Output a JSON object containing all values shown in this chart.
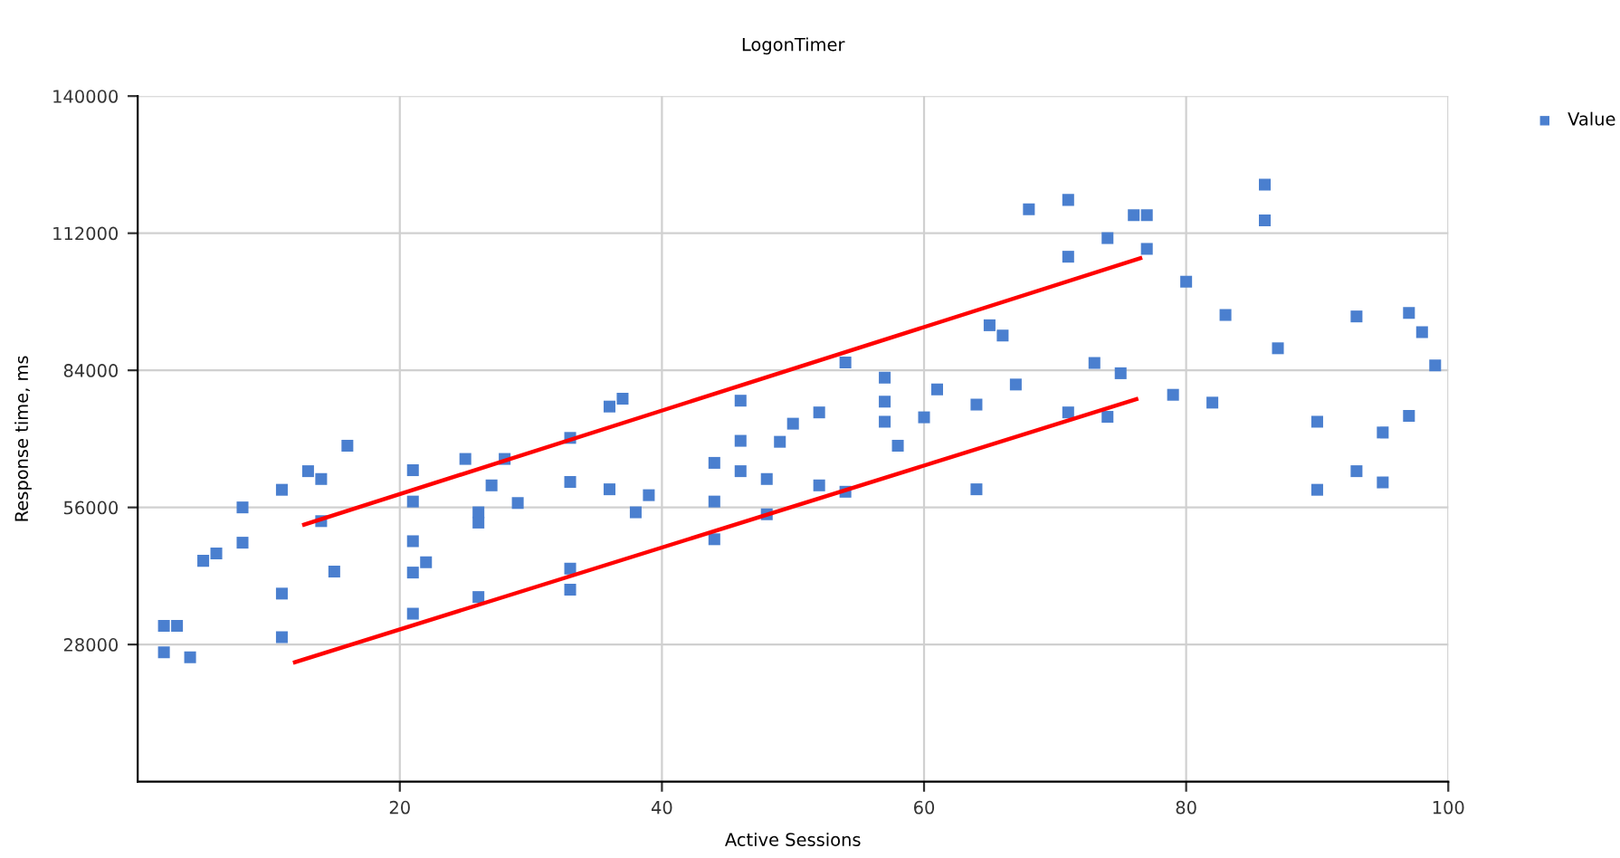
{
  "chart_data": {
    "type": "scatter",
    "title": "LogonTimer",
    "xlabel": "Active Sessions",
    "ylabel": "Response time, ms",
    "xlim": [
      0,
      100
    ],
    "xticks": [
      20,
      40,
      60,
      80,
      100
    ],
    "ylim": [
      0,
      140000
    ],
    "yticks": [
      28000,
      56000,
      84000,
      112000,
      140000
    ],
    "grid": true,
    "legend": "top right",
    "marker": "square",
    "series": [
      {
        "name": "Value",
        "color": "#4a7fcf",
        "x": [
          2,
          3,
          2,
          4,
          5,
          6,
          8,
          8,
          11,
          11,
          11,
          13,
          14,
          14,
          15,
          16,
          21,
          21,
          21,
          21,
          21,
          22,
          25,
          26,
          26,
          26,
          27,
          28,
          29,
          33,
          33,
          33,
          33,
          36,
          37,
          36,
          38,
          39,
          44,
          44,
          44,
          46,
          46,
          46,
          48,
          48,
          49,
          50,
          52,
          52,
          54,
          54,
          57,
          57,
          57,
          58,
          60,
          61,
          64,
          64,
          65,
          66,
          67,
          68,
          71,
          71,
          71,
          73,
          74,
          74,
          75,
          76,
          77,
          77,
          79,
          80,
          82,
          83,
          86,
          86,
          87,
          90,
          90,
          93,
          93,
          95,
          95,
          97,
          97,
          98,
          99
        ],
        "values": [
          31800,
          31800,
          26400,
          25400,
          45100,
          46600,
          56000,
          48800,
          59600,
          38400,
          29500,
          63400,
          61800,
          53200,
          42900,
          68600,
          63600,
          57200,
          49100,
          42700,
          34300,
          44800,
          65900,
          55000,
          52900,
          37700,
          60500,
          65900,
          56900,
          70200,
          61200,
          43500,
          39200,
          76600,
          78200,
          59700,
          55000,
          58500,
          65100,
          57200,
          49500,
          77800,
          69600,
          63400,
          61800,
          54600,
          69400,
          73100,
          75400,
          60500,
          85600,
          59200,
          82500,
          77600,
          73500,
          68600,
          74400,
          80100,
          77000,
          59700,
          93200,
          91100,
          81100,
          116900,
          118800,
          107200,
          75400,
          85500,
          111000,
          74500,
          83400,
          115700,
          115700,
          108800,
          79000,
          102100,
          77400,
          95300,
          121900,
          114600,
          88500,
          73500,
          59600,
          95000,
          63400,
          71300,
          61100,
          95700,
          74700,
          91800,
          85000
        ]
      },
      {
        "type": "line",
        "color": "#ff0000",
        "marker": "none",
        "x": [
          12.7,
          76.5
        ],
        "values": [
          52500,
          106900
        ]
      },
      {
        "type": "line",
        "color": "#ff0000",
        "marker": "none",
        "x": [
          12.0,
          76.2
        ],
        "values": [
          24400,
          78100
        ]
      }
    ]
  }
}
